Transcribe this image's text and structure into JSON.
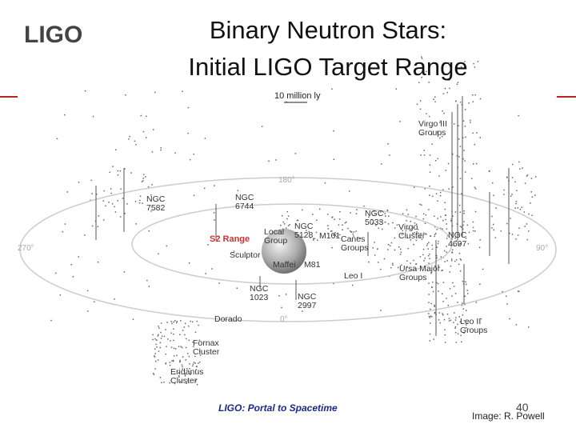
{
  "logo": "LIGO",
  "title": [
    "Binary Neutron Stars:",
    "Initial LIGO Target Range"
  ],
  "scale_label": "10 million ly",
  "range_label": "S2 Range",
  "labels": [
    [
      "Virgo III",
      "Groups"
    ],
    [
      "180°"
    ],
    [
      "NGC",
      "7582"
    ],
    [
      "NGC",
      "6744"
    ],
    [
      "NGC",
      "5033"
    ],
    [
      "NGC",
      "5128"
    ],
    [
      "Local",
      "Group"
    ],
    [
      "M101"
    ],
    [
      "Canes",
      "Groups"
    ],
    [
      "Virgo",
      "Cluster"
    ],
    [
      "NGC",
      "4697"
    ],
    [
      "270°"
    ],
    [
      "90°"
    ],
    [
      "Sculptor"
    ],
    [
      "Maffei"
    ],
    [
      "M81"
    ],
    [
      "Leo I"
    ],
    [
      "Ursa Major",
      "Groups"
    ],
    [
      "NGC",
      "1023"
    ],
    [
      "NGC",
      "2997"
    ],
    [
      "0°"
    ],
    [
      "Dorado"
    ],
    [
      "Leo II",
      "Groups"
    ],
    [
      "Fornax",
      "Cluster"
    ],
    [
      "Eridanus",
      "Cluster"
    ]
  ],
  "footer": "LIGO: Portal to Spacetime",
  "page_number": "40",
  "credit": "Image: R. Powell"
}
